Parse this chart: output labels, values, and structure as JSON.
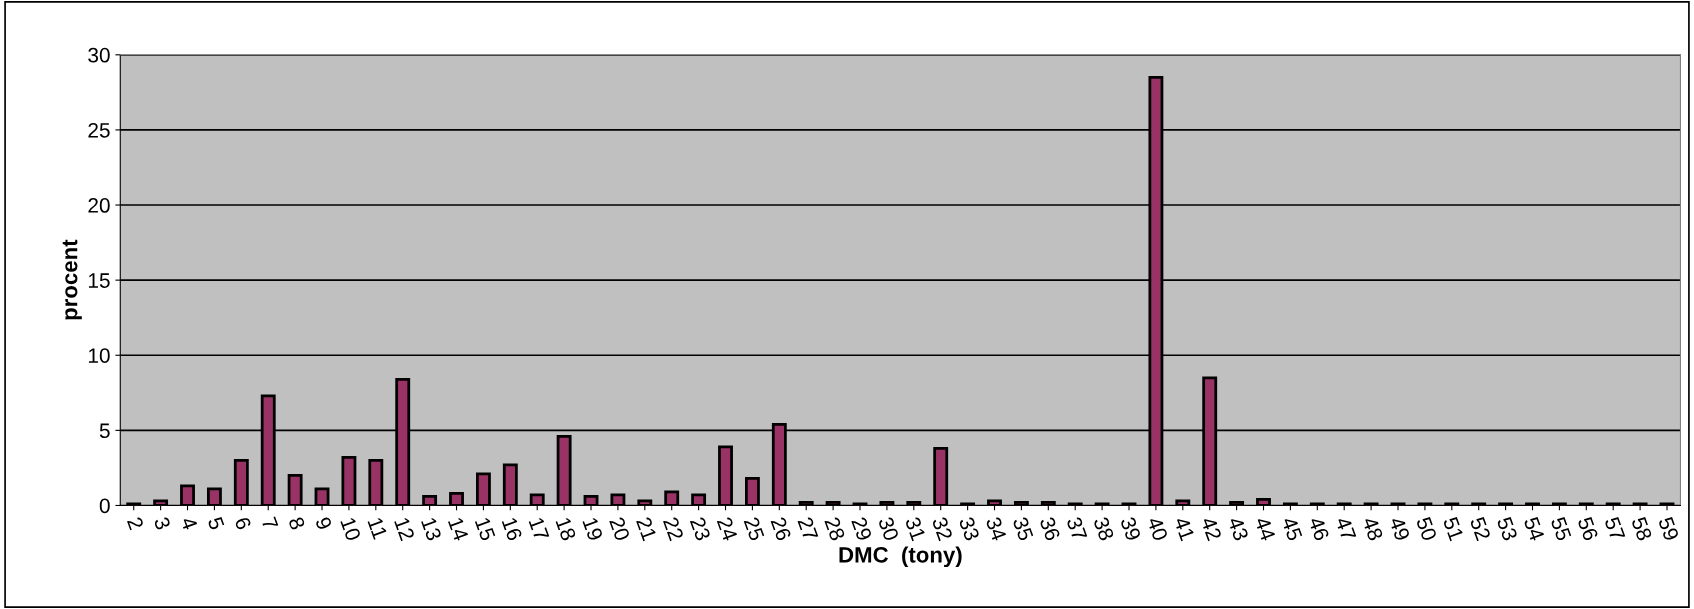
{
  "chart_data": {
    "type": "bar",
    "xlabel": "DMC  (tony)",
    "ylabel": "procent",
    "categories": [
      "2",
      "3",
      "4",
      "5",
      "6",
      "7",
      "8",
      "9",
      "10",
      "11",
      "12",
      "13",
      "14",
      "15",
      "16",
      "17",
      "18",
      "19",
      "20",
      "21",
      "22",
      "23",
      "24",
      "25",
      "26",
      "27",
      "28",
      "29",
      "30",
      "31",
      "32",
      "33",
      "34",
      "35",
      "36",
      "37",
      "38",
      "39",
      "40",
      "41",
      "42",
      "43",
      "44",
      "45",
      "46",
      "47",
      "48",
      "49",
      "50",
      "51",
      "52",
      "53",
      "54",
      "55",
      "56",
      "57",
      "58",
      "59"
    ],
    "values": [
      0.1,
      0.3,
      1.3,
      1.1,
      3.0,
      7.3,
      2.0,
      1.1,
      3.2,
      3.0,
      8.4,
      0.6,
      0.8,
      2.1,
      2.7,
      0.7,
      4.6,
      0.6,
      0.7,
      0.3,
      0.9,
      0.7,
      3.9,
      1.8,
      5.4,
      0.2,
      0.2,
      0.1,
      0.2,
      0.2,
      3.8,
      0.1,
      0.3,
      0.2,
      0.2,
      0.1,
      0.1,
      0.1,
      28.5,
      0.3,
      8.5,
      0.2,
      0.4,
      0.1,
      0.1,
      0.1,
      0.1,
      0.1,
      0.1,
      0.1,
      0.1,
      0.1,
      0.1,
      0.1,
      0.1,
      0.1,
      0.1,
      0.1
    ],
    "color": "#993366",
    "ylim": [
      0,
      30
    ],
    "yticks": [
      0,
      5,
      10,
      15,
      20,
      25,
      30
    ],
    "grid": "y"
  }
}
